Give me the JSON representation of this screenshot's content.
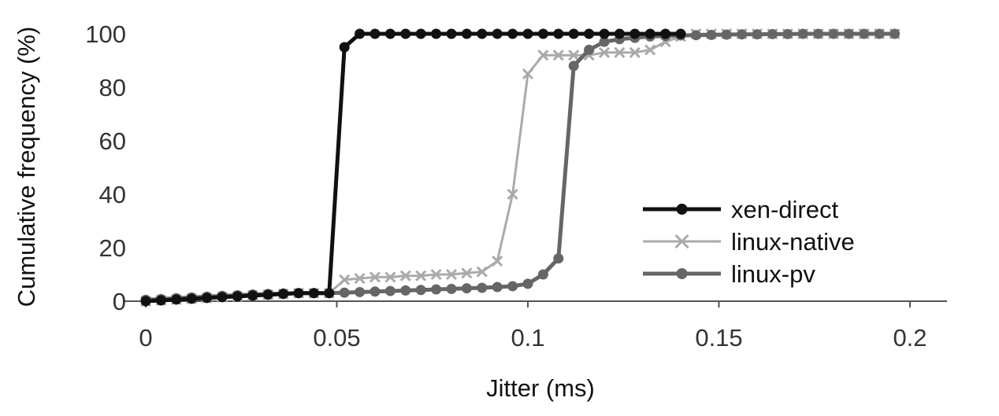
{
  "chart_data": {
    "type": "line",
    "xlabel": "Jitter (ms)",
    "ylabel": "Cumulative frequency (%)",
    "xlim": [
      0,
      0.2
    ],
    "ylim": [
      0,
      100
    ],
    "xticks": [
      "0",
      "0.05",
      "0.1",
      "0.15",
      "0.2"
    ],
    "yticks": [
      "0",
      "20",
      "40",
      "60",
      "80",
      "100"
    ],
    "grid": false,
    "legend_position": "right",
    "series": [
      {
        "name": "xen-direct",
        "color": "#111111",
        "marker": "circle",
        "points": [
          [
            0,
            0
          ],
          [
            0.004,
            0.3
          ],
          [
            0.008,
            0.6
          ],
          [
            0.012,
            0.9
          ],
          [
            0.016,
            1.2
          ],
          [
            0.02,
            1.5
          ],
          [
            0.024,
            1.8
          ],
          [
            0.028,
            2.1
          ],
          [
            0.032,
            2.4
          ],
          [
            0.036,
            2.7
          ],
          [
            0.04,
            3
          ],
          [
            0.044,
            3
          ],
          [
            0.048,
            3
          ],
          [
            0.052,
            95
          ],
          [
            0.056,
            100
          ],
          [
            0.06,
            100
          ],
          [
            0.064,
            100
          ],
          [
            0.068,
            100
          ],
          [
            0.072,
            100
          ],
          [
            0.076,
            100
          ],
          [
            0.08,
            100
          ],
          [
            0.084,
            100
          ],
          [
            0.088,
            100
          ],
          [
            0.092,
            100
          ],
          [
            0.096,
            100
          ],
          [
            0.1,
            100
          ],
          [
            0.104,
            100
          ],
          [
            0.108,
            100
          ],
          [
            0.112,
            100
          ],
          [
            0.116,
            100
          ],
          [
            0.12,
            100
          ],
          [
            0.124,
            100
          ],
          [
            0.128,
            100
          ],
          [
            0.132,
            100
          ],
          [
            0.136,
            100
          ],
          [
            0.14,
            100
          ]
        ]
      },
      {
        "name": "linux-native",
        "color": "#aaaaaa",
        "marker": "x",
        "points": [
          [
            0,
            0
          ],
          [
            0.004,
            0.3
          ],
          [
            0.008,
            0.6
          ],
          [
            0.012,
            0.9
          ],
          [
            0.016,
            1.2
          ],
          [
            0.02,
            1.5
          ],
          [
            0.024,
            1.8
          ],
          [
            0.028,
            2.1
          ],
          [
            0.032,
            2.4
          ],
          [
            0.036,
            2.7
          ],
          [
            0.04,
            3
          ],
          [
            0.044,
            3
          ],
          [
            0.048,
            3
          ],
          [
            0.052,
            8
          ],
          [
            0.056,
            8.5
          ],
          [
            0.06,
            9
          ],
          [
            0.064,
            9
          ],
          [
            0.068,
            9.5
          ],
          [
            0.072,
            9.5
          ],
          [
            0.076,
            10
          ],
          [
            0.08,
            10
          ],
          [
            0.084,
            10.5
          ],
          [
            0.088,
            11
          ],
          [
            0.092,
            15
          ],
          [
            0.096,
            40
          ],
          [
            0.1,
            85
          ],
          [
            0.104,
            92
          ],
          [
            0.108,
            92
          ],
          [
            0.112,
            92
          ],
          [
            0.116,
            92
          ],
          [
            0.12,
            93
          ],
          [
            0.124,
            93
          ],
          [
            0.128,
            93
          ],
          [
            0.132,
            94
          ],
          [
            0.136,
            97
          ],
          [
            0.14,
            99
          ],
          [
            0.144,
            100
          ],
          [
            0.148,
            100
          ],
          [
            0.152,
            100
          ],
          [
            0.156,
            100
          ],
          [
            0.16,
            100
          ],
          [
            0.164,
            100
          ],
          [
            0.168,
            100
          ],
          [
            0.172,
            100
          ],
          [
            0.176,
            100
          ],
          [
            0.18,
            100
          ],
          [
            0.184,
            100
          ],
          [
            0.188,
            100
          ],
          [
            0.192,
            100
          ],
          [
            0.196,
            100
          ]
        ]
      },
      {
        "name": "linux-pv",
        "color": "#666666",
        "marker": "circle",
        "points": [
          [
            0,
            0.5
          ],
          [
            0.004,
            0.8
          ],
          [
            0.008,
            1.1
          ],
          [
            0.012,
            1.4
          ],
          [
            0.016,
            1.7
          ],
          [
            0.02,
            2
          ],
          [
            0.024,
            2.2
          ],
          [
            0.028,
            2.5
          ],
          [
            0.032,
            2.7
          ],
          [
            0.036,
            2.9
          ],
          [
            0.04,
            3
          ],
          [
            0.044,
            3
          ],
          [
            0.048,
            3
          ],
          [
            0.052,
            3.2
          ],
          [
            0.056,
            3.4
          ],
          [
            0.06,
            3.6
          ],
          [
            0.064,
            3.8
          ],
          [
            0.068,
            4
          ],
          [
            0.072,
            4.2
          ],
          [
            0.076,
            4.4
          ],
          [
            0.08,
            4.6
          ],
          [
            0.084,
            4.8
          ],
          [
            0.088,
            5
          ],
          [
            0.092,
            5.3
          ],
          [
            0.096,
            5.6
          ],
          [
            0.1,
            6.5
          ],
          [
            0.104,
            10
          ],
          [
            0.108,
            16
          ],
          [
            0.112,
            88
          ],
          [
            0.116,
            94
          ],
          [
            0.12,
            97
          ],
          [
            0.124,
            98
          ],
          [
            0.128,
            98.5
          ],
          [
            0.132,
            99
          ],
          [
            0.136,
            99.2
          ],
          [
            0.14,
            99.4
          ],
          [
            0.144,
            99.5
          ],
          [
            0.148,
            99.6
          ],
          [
            0.152,
            99.7
          ],
          [
            0.156,
            99.8
          ],
          [
            0.16,
            99.8
          ],
          [
            0.164,
            99.9
          ],
          [
            0.168,
            99.9
          ],
          [
            0.172,
            100
          ],
          [
            0.176,
            100
          ],
          [
            0.18,
            100
          ],
          [
            0.184,
            100
          ],
          [
            0.188,
            100
          ],
          [
            0.192,
            100
          ],
          [
            0.196,
            100
          ]
        ]
      }
    ]
  }
}
